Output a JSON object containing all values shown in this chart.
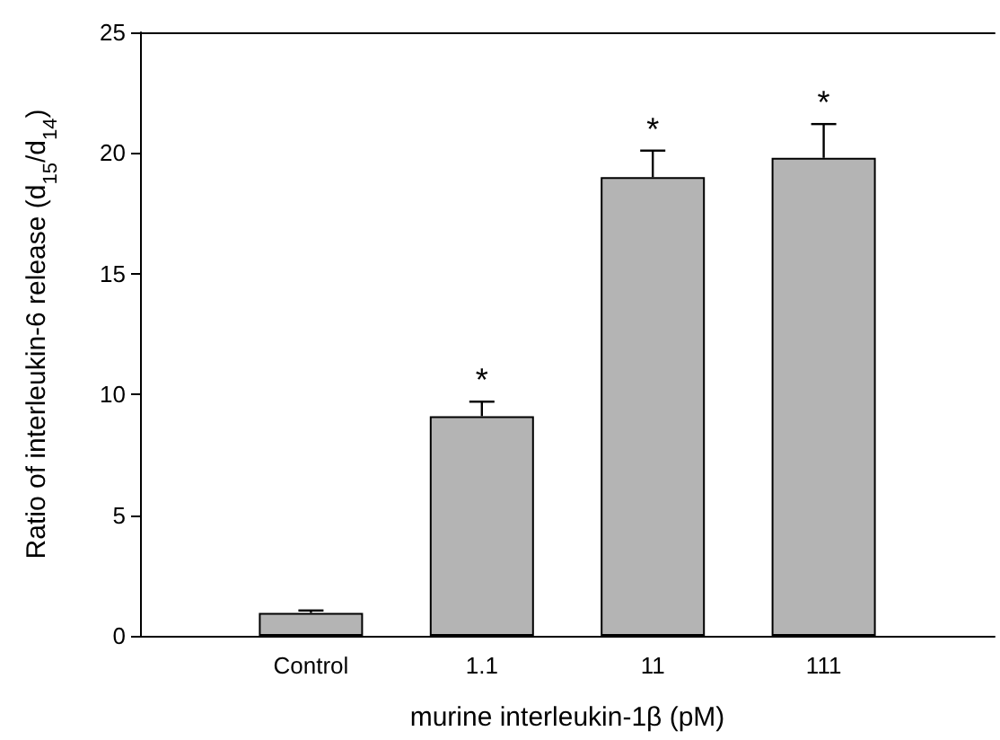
{
  "chart_data": {
    "type": "bar",
    "xlabel": "murine interleukin-1β (pM)",
    "ylabel": "Ratio of interleukin-6 release (d$_{15}$/d$_{14}$)",
    "categories": [
      null,
      "Control",
      "1.1",
      "11",
      "111",
      null
    ],
    "values": [
      null,
      0.95,
      9.1,
      19.0,
      19.8,
      null
    ],
    "errors": [
      null,
      [
        0.95,
        1.05
      ],
      [
        9.1,
        9.7
      ],
      [
        19.0,
        20.1
      ],
      [
        19.8,
        21.2
      ],
      null
    ],
    "color": "#b4b4b4",
    "ylim": [
      0,
      25
    ],
    "yticks": [
      0,
      5,
      10,
      15,
      20,
      25
    ],
    "annotations": [
      {
        "text": "*",
        "x": "1.1",
        "y": 9.7
      },
      {
        "text": "*",
        "x": "11",
        "y": 20.1
      },
      {
        "text": "*",
        "x": "111",
        "y": 21.2
      }
    ],
    "grid": false
  }
}
